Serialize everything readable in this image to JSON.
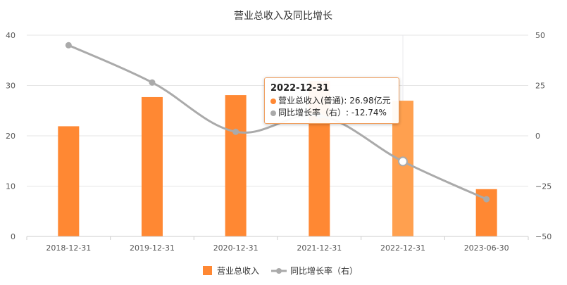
{
  "chart_data": {
    "type": "bar",
    "title": "营业总收入及同比增长",
    "categories": [
      "2018-12-31",
      "2019-12-31",
      "2020-12-31",
      "2021-12-31",
      "2022-12-31",
      "2023-06-30"
    ],
    "series": [
      {
        "name": "营业总收入",
        "type": "bar",
        "axis": "left",
        "values": [
          21.9,
          27.7,
          28.1,
          30.9,
          26.98,
          9.4
        ]
      },
      {
        "name": "同比增长率（右）",
        "type": "line",
        "axis": "right",
        "values": [
          45.0,
          26.5,
          2.0,
          10.0,
          -12.74,
          -31.5
        ]
      }
    ],
    "y_left": {
      "ylim": [
        0,
        40
      ],
      "ticks": [
        "0",
        "10",
        "20",
        "30",
        "40"
      ]
    },
    "y_right": {
      "ylim": [
        -50,
        50
      ],
      "ticks": [
        "−50",
        "−25",
        "0",
        "25",
        "50"
      ]
    },
    "highlight_index": 4,
    "grid": true,
    "legend_position": "bottom",
    "colors": {
      "bar": "#ff8833",
      "bar_highlight": "#ffa04f",
      "line": "#aaaaaa",
      "axis": "#cccccc",
      "grid": "#e6e6e6"
    },
    "legend": [
      {
        "label": "营业总收入",
        "icon": "bar-swatch-icon"
      },
      {
        "label": "同比增长率（右）",
        "icon": "line-marker-icon"
      }
    ],
    "tooltip": {
      "date": "2022-12-31",
      "line1": "营业总收入(普通): 26.98亿元",
      "line2": "同比增长率（右）: -12.74%"
    }
  }
}
